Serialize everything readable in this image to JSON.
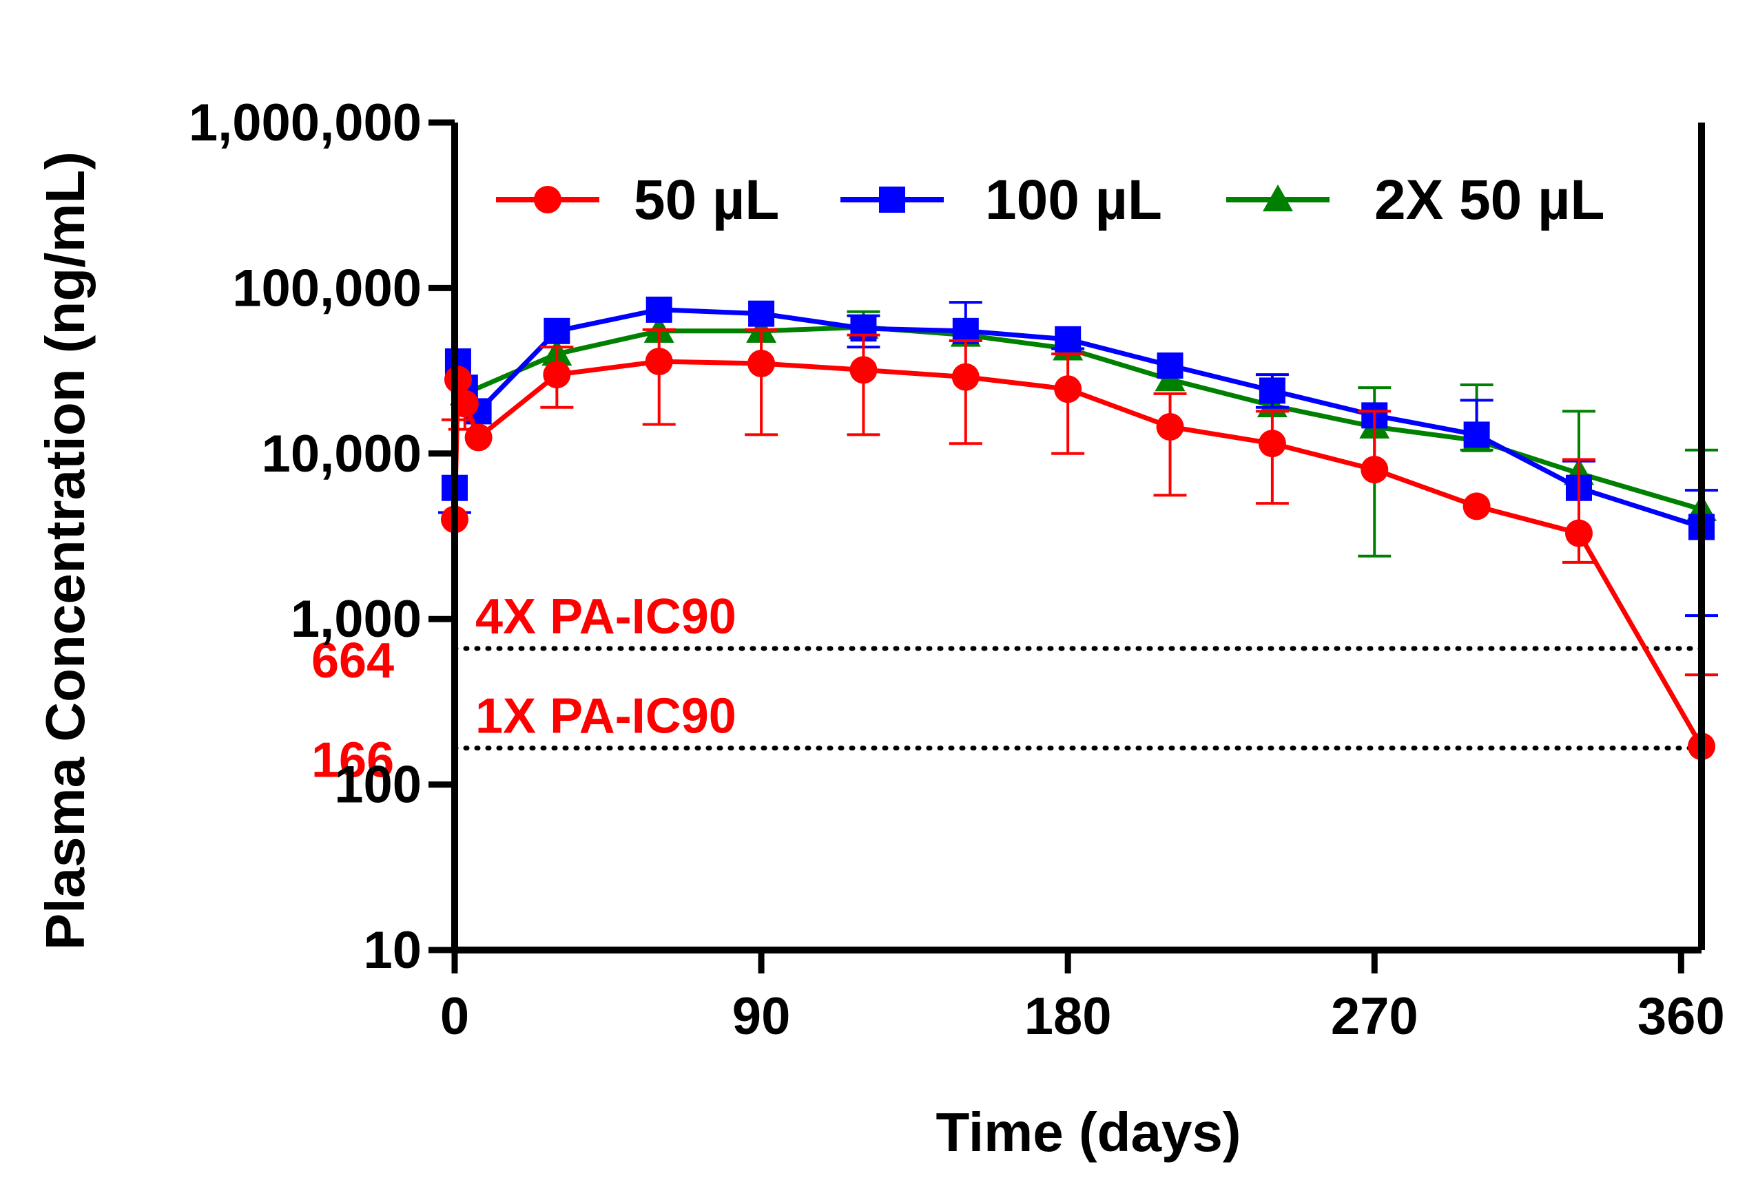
{
  "chart_data": {
    "type": "line",
    "ylabel": "Plasma Concentration (ng/mL)",
    "xlabel": "Time (days)",
    "yscale": "log",
    "ylim": [
      10,
      1000000
    ],
    "xlim": [
      0,
      366
    ],
    "x_ticks": [
      0,
      90,
      180,
      270,
      360
    ],
    "x_tick_labels": [
      "0",
      "90",
      "180",
      "270",
      "360"
    ],
    "y_ticks": [
      10,
      100,
      1000,
      10000,
      100000,
      1000000
    ],
    "y_tick_labels": [
      "10",
      "100",
      "1,000",
      "10,000",
      "100,000",
      "1,000,000"
    ],
    "legend_position": "top",
    "series": [
      {
        "name": "50 µL",
        "color": "#ff0000",
        "marker": "circle",
        "x": [
          0,
          1,
          3,
          7,
          30,
          60,
          90,
          120,
          150,
          180,
          210,
          240,
          270,
          300,
          330,
          366
        ],
        "values": [
          4000,
          28000,
          20000,
          12500,
          30000,
          36000,
          35000,
          32000,
          29000,
          24500,
          14500,
          11500,
          8000,
          4800,
          3300,
          170
        ],
        "error_hi": [
          null,
          null,
          null,
          null,
          44000,
          56000,
          56000,
          52000,
          48000,
          40000,
          23000,
          18000,
          18000,
          null,
          9200,
          460
        ],
        "error_lo": [
          null,
          16000,
          14000,
          null,
          19000,
          15000,
          13000,
          13000,
          11500,
          10000,
          5600,
          5000,
          null,
          null,
          2200,
          null
        ]
      },
      {
        "name": "100 µL",
        "color": "#0000ff",
        "marker": "square",
        "x": [
          0,
          1,
          3,
          7,
          30,
          60,
          90,
          120,
          150,
          180,
          210,
          240,
          270,
          300,
          330,
          366
        ],
        "values": [
          6200,
          36000,
          25000,
          18000,
          55000,
          74000,
          70000,
          57000,
          55000,
          49000,
          34000,
          24000,
          17000,
          13000,
          6200,
          3600
        ],
        "error_hi": [
          null,
          null,
          null,
          null,
          null,
          null,
          null,
          68000,
          82000,
          null,
          null,
          30000,
          null,
          21000,
          9000,
          6000
        ],
        "error_lo": [
          4400,
          null,
          null,
          null,
          null,
          null,
          null,
          44000,
          null,
          43000,
          null,
          19000,
          null,
          null,
          null,
          1050
        ]
      },
      {
        "name": "2X 50 µL",
        "color": "#008000",
        "marker": "triangle",
        "x": [
          3,
          30,
          60,
          90,
          120,
          150,
          180,
          210,
          240,
          270,
          300,
          330,
          366
        ],
        "values": [
          23000,
          40000,
          55000,
          55000,
          58000,
          52000,
          43000,
          28000,
          19500,
          14500,
          12000,
          7600,
          4600
        ],
        "error_hi": [
          null,
          null,
          null,
          null,
          72000,
          null,
          null,
          null,
          null,
          25000,
          26000,
          18000,
          10500
        ],
        "error_lo": [
          null,
          null,
          null,
          null,
          null,
          null,
          null,
          null,
          null,
          2400,
          10500,
          null,
          null
        ]
      }
    ],
    "reference_lines": [
      {
        "value": 664,
        "label": "4X PA-IC90",
        "value_label": "664",
        "color": "#ff0000",
        "style": "dotted"
      },
      {
        "value": 166,
        "label": "1X PA-IC90",
        "value_label": "166",
        "color": "#ff0000",
        "style": "dotted"
      }
    ]
  }
}
